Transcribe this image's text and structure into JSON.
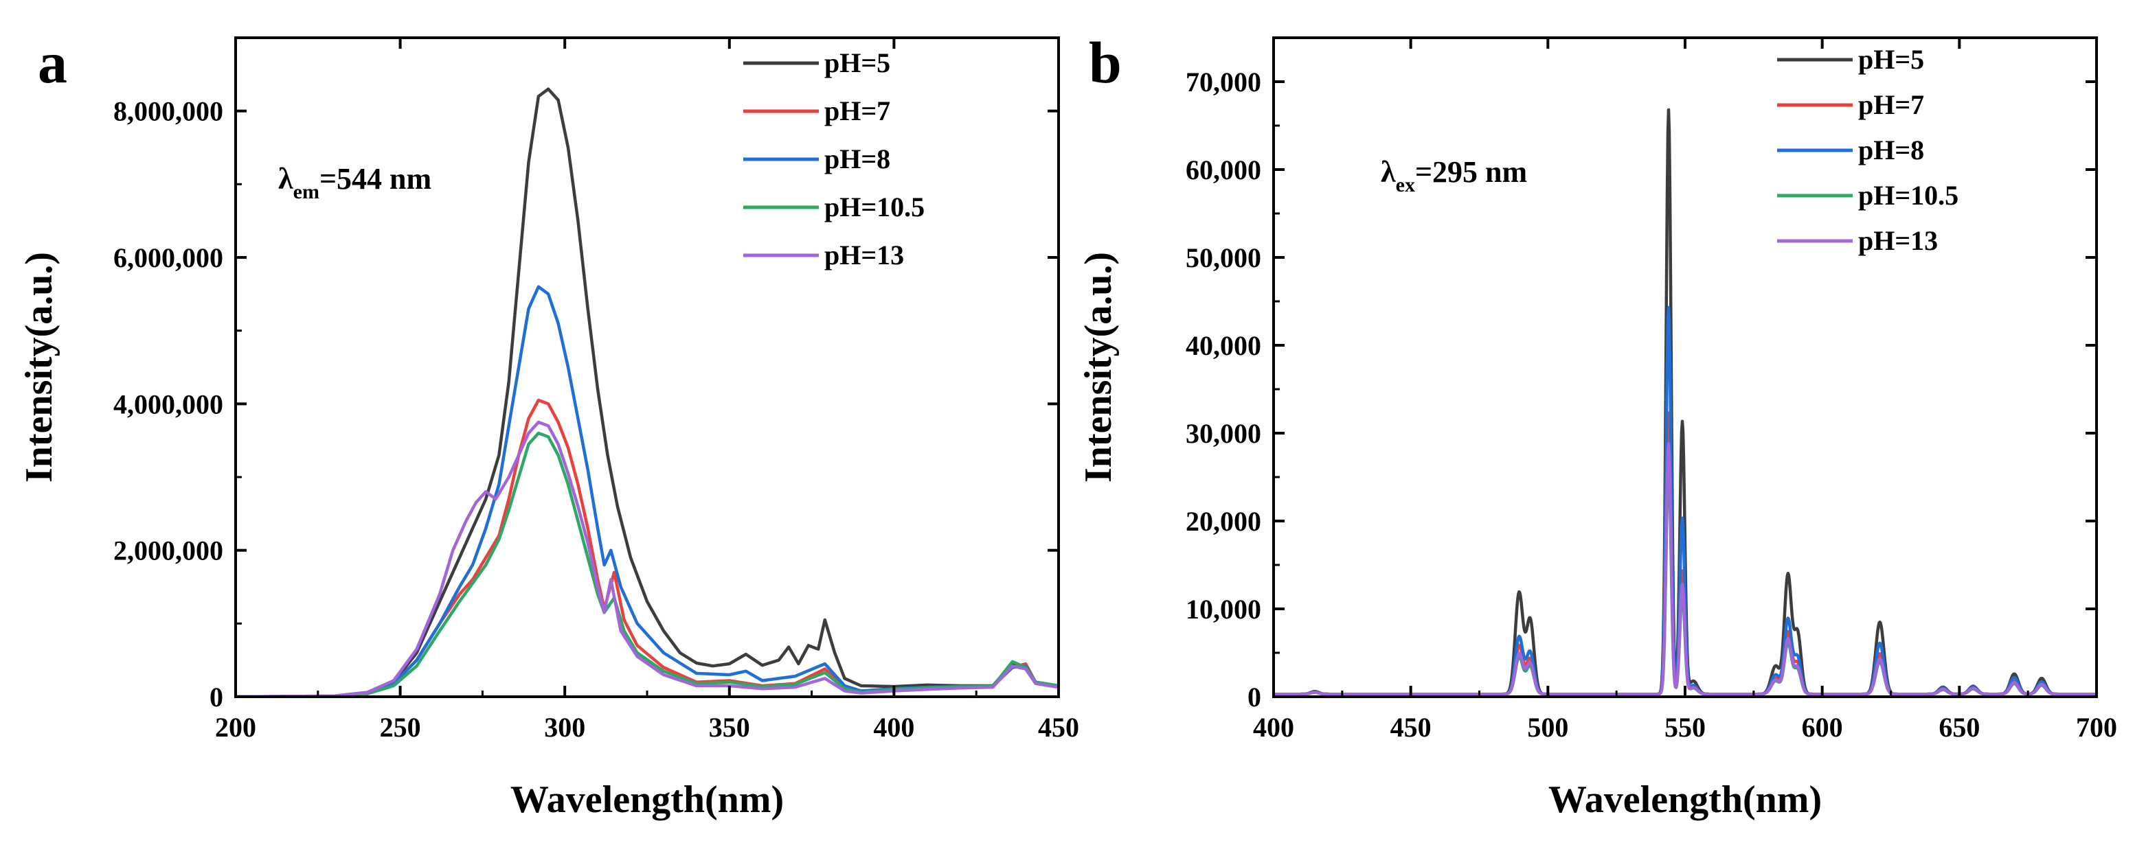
{
  "chart_data": [
    {
      "panel": "a",
      "type": "line",
      "xlabel": "Wavelength(nm)",
      "ylabel": "Intensity(a.u.)",
      "xlim": [
        200,
        450
      ],
      "ylim": [
        0,
        9000000
      ],
      "x_ticks": [
        200,
        250,
        300,
        350,
        400,
        450
      ],
      "x_tick_labels": [
        "200",
        "250",
        "300",
        "350",
        "400",
        "450"
      ],
      "y_ticks": [
        0,
        2000000,
        4000000,
        6000000,
        8000000
      ],
      "y_tick_labels": [
        "0",
        "2,000,000",
        "4,000,000",
        "6,000,000",
        "8,000,000"
      ],
      "annotation": {
        "main": "λ",
        "sub": "em",
        "rest": "=544 nm"
      },
      "legend_position": "top-right",
      "series": [
        {
          "name": "pH=5",
          "color": "#3d3d3d",
          "points": [
            [
              200,
              0
            ],
            [
              230,
              10000
            ],
            [
              240,
              60000
            ],
            [
              248,
              200000
            ],
            [
              255,
              600000
            ],
            [
              262,
              1300000
            ],
            [
              268,
              1900000
            ],
            [
              272,
              2300000
            ],
            [
              276,
              2700000
            ],
            [
              280,
              3300000
            ],
            [
              283,
              4300000
            ],
            [
              286,
              5800000
            ],
            [
              289,
              7300000
            ],
            [
              292,
              8200000
            ],
            [
              295,
              8300000
            ],
            [
              298,
              8150000
            ],
            [
              301,
              7500000
            ],
            [
              304,
              6500000
            ],
            [
              307,
              5300000
            ],
            [
              310,
              4200000
            ],
            [
              313,
              3300000
            ],
            [
              316,
              2600000
            ],
            [
              320,
              1900000
            ],
            [
              325,
              1300000
            ],
            [
              330,
              900000
            ],
            [
              335,
              600000
            ],
            [
              340,
              460000
            ],
            [
              345,
              420000
            ],
            [
              350,
              450000
            ],
            [
              355,
              580000
            ],
            [
              360,
              430000
            ],
            [
              365,
              500000
            ],
            [
              368,
              680000
            ],
            [
              371,
              450000
            ],
            [
              374,
              700000
            ],
            [
              377,
              650000
            ],
            [
              379,
              1050000
            ],
            [
              382,
              600000
            ],
            [
              385,
              250000
            ],
            [
              390,
              150000
            ],
            [
              400,
              140000
            ],
            [
              410,
              160000
            ],
            [
              420,
              150000
            ],
            [
              430,
              150000
            ],
            [
              436,
              450000
            ],
            [
              440,
              400000
            ],
            [
              443,
              200000
            ],
            [
              450,
              150000
            ]
          ]
        },
        {
          "name": "pH=7",
          "color": "#e8423f",
          "points": [
            [
              200,
              0
            ],
            [
              230,
              8000
            ],
            [
              240,
              50000
            ],
            [
              248,
              180000
            ],
            [
              255,
              500000
            ],
            [
              262,
              1000000
            ],
            [
              268,
              1400000
            ],
            [
              272,
              1600000
            ],
            [
              276,
              1900000
            ],
            [
              280,
              2200000
            ],
            [
              283,
              2700000
            ],
            [
              286,
              3300000
            ],
            [
              289,
              3800000
            ],
            [
              292,
              4050000
            ],
            [
              295,
              4000000
            ],
            [
              298,
              3750000
            ],
            [
              301,
              3400000
            ],
            [
              304,
              2900000
            ],
            [
              307,
              2300000
            ],
            [
              310,
              1600000
            ],
            [
              312,
              1200000
            ],
            [
              315,
              1700000
            ],
            [
              318,
              1050000
            ],
            [
              322,
              700000
            ],
            [
              330,
              400000
            ],
            [
              340,
              200000
            ],
            [
              350,
              220000
            ],
            [
              360,
              150000
            ],
            [
              370,
              180000
            ],
            [
              379,
              380000
            ],
            [
              385,
              120000
            ],
            [
              390,
              70000
            ],
            [
              400,
              100000
            ],
            [
              410,
              110000
            ],
            [
              420,
              130000
            ],
            [
              430,
              140000
            ],
            [
              436,
              400000
            ],
            [
              440,
              450000
            ],
            [
              443,
              200000
            ],
            [
              450,
              150000
            ]
          ]
        },
        {
          "name": "pH=8",
          "color": "#1f6fd6",
          "points": [
            [
              200,
              0
            ],
            [
              230,
              8000
            ],
            [
              240,
              50000
            ],
            [
              248,
              180000
            ],
            [
              255,
              500000
            ],
            [
              262,
              1000000
            ],
            [
              268,
              1500000
            ],
            [
              272,
              1800000
            ],
            [
              276,
              2300000
            ],
            [
              280,
              2900000
            ],
            [
              283,
              3700000
            ],
            [
              286,
              4500000
            ],
            [
              289,
              5300000
            ],
            [
              292,
              5600000
            ],
            [
              295,
              5500000
            ],
            [
              298,
              5100000
            ],
            [
              301,
              4500000
            ],
            [
              304,
              3800000
            ],
            [
              307,
              3100000
            ],
            [
              310,
              2300000
            ],
            [
              312,
              1800000
            ],
            [
              314,
              2000000
            ],
            [
              317,
              1500000
            ],
            [
              322,
              1000000
            ],
            [
              330,
              600000
            ],
            [
              340,
              320000
            ],
            [
              350,
              300000
            ],
            [
              355,
              350000
            ],
            [
              360,
              220000
            ],
            [
              370,
              280000
            ],
            [
              379,
              450000
            ],
            [
              385,
              150000
            ],
            [
              390,
              80000
            ],
            [
              400,
              110000
            ],
            [
              410,
              130000
            ],
            [
              420,
              140000
            ],
            [
              430,
              150000
            ],
            [
              436,
              400000
            ],
            [
              440,
              420000
            ],
            [
              443,
              200000
            ],
            [
              450,
              150000
            ]
          ]
        },
        {
          "name": "pH=10.5",
          "color": "#2fa866",
          "points": [
            [
              200,
              0
            ],
            [
              230,
              5000
            ],
            [
              240,
              40000
            ],
            [
              248,
              150000
            ],
            [
              255,
              420000
            ],
            [
              262,
              900000
            ],
            [
              268,
              1300000
            ],
            [
              272,
              1550000
            ],
            [
              276,
              1800000
            ],
            [
              280,
              2150000
            ],
            [
              283,
              2550000
            ],
            [
              286,
              3000000
            ],
            [
              289,
              3450000
            ],
            [
              292,
              3600000
            ],
            [
              295,
              3550000
            ],
            [
              298,
              3300000
            ],
            [
              301,
              2900000
            ],
            [
              304,
              2400000
            ],
            [
              307,
              1900000
            ],
            [
              310,
              1400000
            ],
            [
              312,
              1150000
            ],
            [
              315,
              1350000
            ],
            [
              318,
              900000
            ],
            [
              322,
              600000
            ],
            [
              330,
              350000
            ],
            [
              340,
              180000
            ],
            [
              350,
              200000
            ],
            [
              360,
              140000
            ],
            [
              370,
              170000
            ],
            [
              379,
              330000
            ],
            [
              385,
              110000
            ],
            [
              390,
              60000
            ],
            [
              400,
              100000
            ],
            [
              410,
              120000
            ],
            [
              420,
              140000
            ],
            [
              430,
              140000
            ],
            [
              436,
              480000
            ],
            [
              440,
              400000
            ],
            [
              443,
              200000
            ],
            [
              450,
              150000
            ]
          ]
        },
        {
          "name": "pH=13",
          "color": "#a266d9",
          "points": [
            [
              200,
              0
            ],
            [
              230,
              10000
            ],
            [
              240,
              60000
            ],
            [
              248,
              220000
            ],
            [
              255,
              650000
            ],
            [
              262,
              1400000
            ],
            [
              266,
              2000000
            ],
            [
              270,
              2400000
            ],
            [
              273,
              2650000
            ],
            [
              276,
              2800000
            ],
            [
              279,
              2700000
            ],
            [
              283,
              3000000
            ],
            [
              286,
              3300000
            ],
            [
              289,
              3600000
            ],
            [
              292,
              3750000
            ],
            [
              295,
              3700000
            ],
            [
              298,
              3450000
            ],
            [
              301,
              3050000
            ],
            [
              304,
              2600000
            ],
            [
              307,
              2100000
            ],
            [
              310,
              1500000
            ],
            [
              312,
              1150000
            ],
            [
              314,
              1600000
            ],
            [
              317,
              900000
            ],
            [
              322,
              550000
            ],
            [
              330,
              300000
            ],
            [
              340,
              150000
            ],
            [
              350,
              150000
            ],
            [
              360,
              110000
            ],
            [
              370,
              130000
            ],
            [
              379,
              250000
            ],
            [
              385,
              80000
            ],
            [
              390,
              50000
            ],
            [
              400,
              80000
            ],
            [
              410,
              100000
            ],
            [
              420,
              120000
            ],
            [
              430,
              130000
            ],
            [
              436,
              420000
            ],
            [
              440,
              380000
            ],
            [
              443,
              180000
            ],
            [
              450,
              130000
            ]
          ]
        }
      ]
    },
    {
      "panel": "b",
      "type": "line",
      "xlabel": "Wavelength(nm)",
      "ylabel": "Intensity(a.u.)",
      "xlim": [
        400,
        700
      ],
      "ylim": [
        0,
        75000
      ],
      "x_ticks": [
        400,
        450,
        500,
        550,
        600,
        650,
        700
      ],
      "x_tick_labels": [
        "400",
        "450",
        "500",
        "550",
        "600",
        "650",
        "700"
      ],
      "y_ticks": [
        0,
        10000,
        20000,
        30000,
        40000,
        50000,
        60000,
        70000
      ],
      "y_tick_labels": [
        "0",
        "10,000",
        "20,000",
        "30,000",
        "40,000",
        "50,000",
        "60,000",
        "70,000"
      ],
      "annotation": {
        "main": "λ",
        "sub": "ex",
        "rest": "=295 nm"
      },
      "legend_position": "top-right",
      "peaks": [
        {
          "x": 415,
          "w": 1.5
        },
        {
          "x": 489.5,
          "w": 1.4
        },
        {
          "x": 493.5,
          "w": 1.4
        },
        {
          "x": 544,
          "w": 0.9
        },
        {
          "x": 549,
          "w": 0.9
        },
        {
          "x": 553,
          "w": 1.5
        },
        {
          "x": 583,
          "w": 1.6
        },
        {
          "x": 587.5,
          "w": 1.3
        },
        {
          "x": 591,
          "w": 1.3
        },
        {
          "x": 621,
          "w": 1.5
        },
        {
          "x": 644,
          "w": 1.5
        },
        {
          "x": 655,
          "w": 1.5
        },
        {
          "x": 670,
          "w": 1.5
        },
        {
          "x": 680,
          "w": 1.5
        }
      ],
      "series": [
        {
          "name": "pH=5",
          "color": "#3d3d3d",
          "baseline": 300,
          "amps": [
            300,
            11500,
            8500,
            66500,
            31000,
            1500,
            3200,
            13500,
            7000,
            8200,
            800,
            900,
            2300,
            1800
          ]
        },
        {
          "name": "pH=7",
          "color": "#e8423f",
          "baseline": 300,
          "amps": [
            200,
            5500,
            4000,
            32000,
            14000,
            800,
            1800,
            7000,
            3500,
            4600,
            600,
            700,
            1500,
            1200
          ]
        },
        {
          "name": "pH=8",
          "color": "#1f6fd6",
          "baseline": 300,
          "amps": [
            200,
            6500,
            4800,
            44000,
            20000,
            1000,
            2200,
            8500,
            4200,
            5800,
            700,
            800,
            1900,
            1400
          ]
        },
        {
          "name": "pH=10.5",
          "color": "#2fa866",
          "baseline": 300,
          "amps": [
            200,
            4200,
            3200,
            26000,
            11500,
            700,
            1500,
            5800,
            2800,
            3700,
            500,
            600,
            1200,
            1000
          ]
        },
        {
          "name": "pH=13",
          "color": "#a266d9",
          "baseline": 300,
          "amps": [
            200,
            4600,
            3500,
            28500,
            12500,
            750,
            1600,
            6200,
            3000,
            4000,
            550,
            650,
            1300,
            1100
          ]
        }
      ]
    }
  ]
}
